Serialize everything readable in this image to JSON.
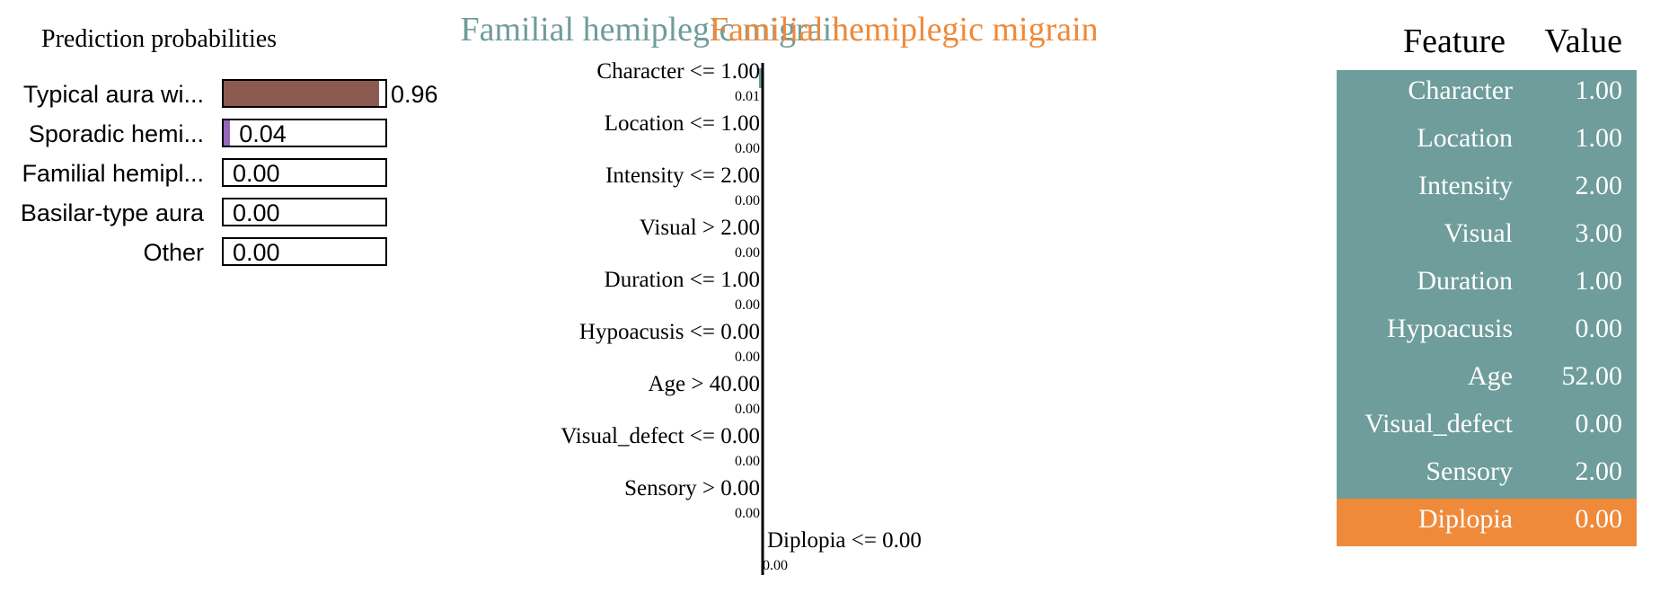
{
  "colors": {
    "class_a": "#6e9d9b",
    "class_b": "#ef8a3a",
    "proba_fills": [
      "#8b5a50",
      "#9467bd",
      "#cccccc",
      "#cccccc",
      "#cccccc"
    ]
  },
  "proba": {
    "title": "Prediction probabilities",
    "rows": [
      {
        "label": "Typical aura wi...",
        "value": 0.96,
        "value_text": "0.96"
      },
      {
        "label": "Sporadic hemi...",
        "value": 0.04,
        "value_text": "0.04"
      },
      {
        "label": "Familial hemipl...",
        "value": 0.0,
        "value_text": "0.00"
      },
      {
        "label": "Basilar-type aura",
        "value": 0.0,
        "value_text": "0.00"
      },
      {
        "label": "Other",
        "value": 0.0,
        "value_text": "0.00"
      }
    ]
  },
  "chart_data": {
    "type": "bar",
    "title_left": "Familial hemiplegic migraine",
    "title_right": "Familial hemiplegic migraine",
    "categories": [
      "Character <= 1.00",
      "Location <= 1.00",
      "Intensity <= 2.00",
      "Visual > 2.00",
      "Duration <= 1.00",
      "Hypoacusis <= 0.00",
      "Age > 40.00",
      "Visual_defect <= 0.00",
      "Sensory > 0.00",
      "Diplopia <= 0.00"
    ],
    "values": [
      -0.01,
      0.0,
      0.0,
      0.0,
      0.0,
      0.0,
      0.0,
      0.0,
      0.0,
      0.0
    ],
    "value_labels": [
      "0.01",
      "0.00",
      "0.00",
      "0.00",
      "0.00",
      "0.00",
      "0.00",
      "0.00",
      "0.00",
      "0.00"
    ],
    "sides": [
      "left",
      "left",
      "left",
      "left",
      "left",
      "left",
      "left",
      "left",
      "left",
      "right"
    ]
  },
  "table": {
    "header_feature": "Feature",
    "header_value": "Value",
    "rows": [
      {
        "feature": "Character",
        "value": "1.00",
        "highlight": false
      },
      {
        "feature": "Location",
        "value": "1.00",
        "highlight": false
      },
      {
        "feature": "Intensity",
        "value": "2.00",
        "highlight": false
      },
      {
        "feature": "Visual",
        "value": "3.00",
        "highlight": false
      },
      {
        "feature": "Duration",
        "value": "1.00",
        "highlight": false
      },
      {
        "feature": "Hypoacusis",
        "value": "0.00",
        "highlight": false
      },
      {
        "feature": "Age",
        "value": "52.00",
        "highlight": false
      },
      {
        "feature": "Visual_defect",
        "value": "0.00",
        "highlight": false
      },
      {
        "feature": "Sensory",
        "value": "2.00",
        "highlight": false
      },
      {
        "feature": "Diplopia",
        "value": "0.00",
        "highlight": true
      }
    ]
  }
}
